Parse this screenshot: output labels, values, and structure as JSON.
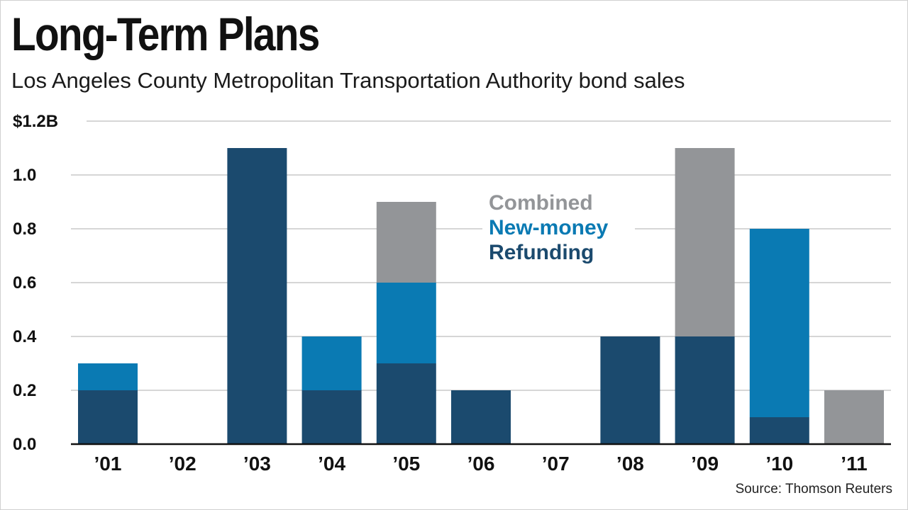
{
  "header": {
    "title": "Long-Term Plans",
    "subtitle": "Los Angeles County Metropolitan Transportation Authority bond sales"
  },
  "footer": {
    "source": "Source: Thomson Reuters"
  },
  "colors": {
    "refunding": "#1b4a6e",
    "new_money": "#0a7ab3",
    "combined": "#939598",
    "gridline": "#c8c8c8",
    "axis": "#111111"
  },
  "chart_data": {
    "type": "bar",
    "stacked": true,
    "title": "Long-Term Plans",
    "subtitle": "Los Angeles County Metropolitan Transportation Authority bond sales",
    "xlabel": "",
    "ylabel": "",
    "ylim": [
      0,
      1.2
    ],
    "y_ticks": [
      {
        "value": 0.0,
        "label": "0.0"
      },
      {
        "value": 0.2,
        "label": "0.2"
      },
      {
        "value": 0.4,
        "label": "0.4"
      },
      {
        "value": 0.6,
        "label": "0.6"
      },
      {
        "value": 0.8,
        "label": "0.8"
      },
      {
        "value": 1.0,
        "label": "1.0"
      },
      {
        "value": 1.2,
        "label": "$1.2B"
      }
    ],
    "grid": true,
    "legend_position": "center",
    "categories": [
      "’01",
      "’02",
      "’03",
      "’04",
      "’05",
      "’06",
      "’07",
      "’08",
      "’09",
      "’10",
      "’11"
    ],
    "series": [
      {
        "name": "Refunding",
        "color_key": "refunding",
        "values": [
          0.2,
          0,
          1.1,
          0.2,
          0.3,
          0.2,
          0,
          0.4,
          0.4,
          0.1,
          0
        ]
      },
      {
        "name": "New-money",
        "color_key": "new_money",
        "values": [
          0.1,
          0,
          0,
          0.2,
          0.3,
          0,
          0,
          0,
          0,
          0.7,
          0
        ]
      },
      {
        "name": "Combined",
        "color_key": "combined",
        "values": [
          0,
          0,
          0,
          0,
          0.3,
          0,
          0,
          0,
          0.7,
          0,
          0.2
        ]
      }
    ],
    "legend": [
      "Combined",
      "New-money",
      "Refunding"
    ]
  }
}
